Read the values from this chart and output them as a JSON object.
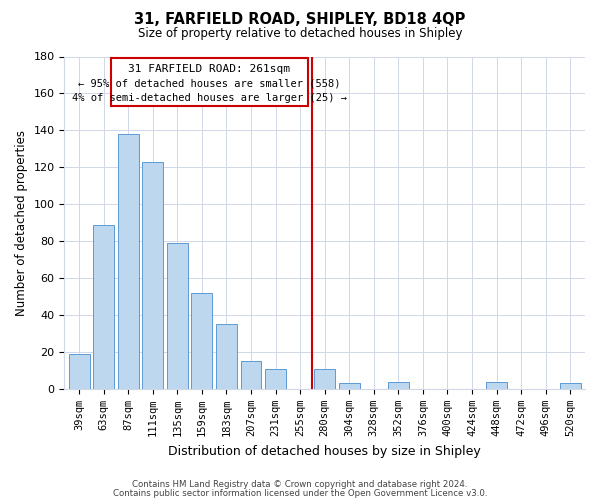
{
  "title": "31, FARFIELD ROAD, SHIPLEY, BD18 4QP",
  "subtitle": "Size of property relative to detached houses in Shipley",
  "xlabel": "Distribution of detached houses by size in Shipley",
  "ylabel": "Number of detached properties",
  "bar_labels": [
    "39sqm",
    "63sqm",
    "87sqm",
    "111sqm",
    "135sqm",
    "159sqm",
    "183sqm",
    "207sqm",
    "231sqm",
    "255sqm",
    "280sqm",
    "304sqm",
    "328sqm",
    "352sqm",
    "376sqm",
    "400sqm",
    "424sqm",
    "448sqm",
    "472sqm",
    "496sqm",
    "520sqm"
  ],
  "bar_values": [
    19,
    89,
    138,
    123,
    79,
    52,
    35,
    15,
    11,
    0,
    11,
    3,
    0,
    4,
    0,
    0,
    0,
    4,
    0,
    0,
    3
  ],
  "bar_color": "#bdd7ee",
  "bar_edge_color": "#5b9bd5",
  "ylim": [
    0,
    180
  ],
  "yticks": [
    0,
    20,
    40,
    60,
    80,
    100,
    120,
    140,
    160,
    180
  ],
  "vline_x": 9.5,
  "vline_color": "#cc0000",
  "annotation_title": "31 FARFIELD ROAD: 261sqm",
  "annotation_line1": "← 95% of detached houses are smaller (558)",
  "annotation_line2": "4% of semi-detached houses are larger (25) →",
  "annotation_box_color": "#ffffff",
  "annotation_box_edge": "#cc0000",
  "footer1": "Contains HM Land Registry data © Crown copyright and database right 2024.",
  "footer2": "Contains public sector information licensed under the Open Government Licence v3.0.",
  "bg_color": "#ffffff",
  "grid_color": "#d0d8e8"
}
